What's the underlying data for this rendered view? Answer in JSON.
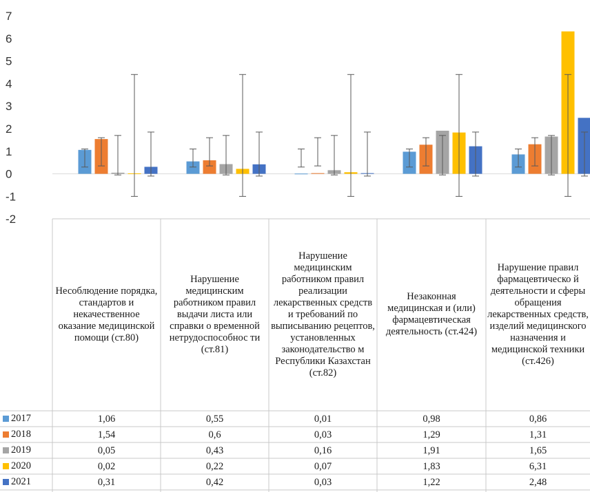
{
  "chart_data": {
    "type": "bar",
    "ylim": [
      -2,
      7
    ],
    "yticks": [
      -2,
      -1,
      0,
      1,
      2,
      3,
      4,
      5,
      6,
      7
    ],
    "categories": [
      "Несоблюдение порядка, стандартов и некачественное оказание медицинской помощи (ст.80)",
      "Нарушение медицинским работником правил выдачи листа или справки о временной нетрудоспособнос ти (ст.81)",
      "Нарушение медицинским работником правил реализации лекарственных средств и требований по выписыванию рецептов, установленных законодательство м Республики Казахстан (ст.82)",
      "Незаконная медицинская и (или) фармацевтическая деятельность (ст.424)",
      "Нарушение правил фармацевтическо й деятельности и сферы обращения лекарственных средств, изделий медицинского назначения и медицинской техники (ст.426)"
    ],
    "series": [
      {
        "name": "2017",
        "color": "#5B9BD5",
        "values": [
          1.06,
          0.55,
          0.01,
          0.98,
          0.86
        ],
        "labels": [
          "1,06",
          "0,55",
          "0,01",
          "0,98",
          "0,86"
        ],
        "error_low": [
          0.3,
          0.3,
          0.3,
          0.3,
          0.3
        ],
        "error_high": [
          1.1,
          1.1,
          1.1,
          1.1,
          1.1
        ]
      },
      {
        "name": "2018",
        "color": "#ED7D31",
        "values": [
          1.54,
          0.6,
          0.03,
          1.29,
          1.31
        ],
        "labels": [
          "1,54",
          "0,6",
          "0,03",
          "1,29",
          "1,31"
        ],
        "error_low": [
          0.35,
          0.35,
          0.35,
          0.35,
          0.35
        ],
        "error_high": [
          1.6,
          1.6,
          1.6,
          1.6,
          1.6
        ]
      },
      {
        "name": "2019",
        "color": "#A5A5A5",
        "values": [
          0.05,
          0.43,
          0.16,
          1.91,
          1.65
        ],
        "labels": [
          "0,05",
          "0,43",
          "0,16",
          "1,91",
          "1,65"
        ],
        "error_low": [
          -0.05,
          -0.05,
          -0.05,
          -0.05,
          -0.05
        ],
        "error_high": [
          1.7,
          1.7,
          1.7,
          1.7,
          1.7
        ]
      },
      {
        "name": "2020",
        "color": "#FFC000",
        "values": [
          0.02,
          0.22,
          0.07,
          1.83,
          6.31
        ],
        "labels": [
          "0,02",
          "0,22",
          "0,07",
          "1,83",
          "6,31"
        ],
        "error_low": [
          -1,
          -1,
          -1,
          -1,
          -1
        ],
        "error_high": [
          4.4,
          4.4,
          4.4,
          4.4,
          4.4
        ]
      },
      {
        "name": "2021",
        "color": "#4472C4",
        "values": [
          0.31,
          0.42,
          0.03,
          1.22,
          2.48
        ],
        "labels": [
          "0,31",
          "0,42",
          "0,03",
          "1,22",
          "2,48"
        ],
        "error_low": [
          -0.1,
          -0.1,
          -0.1,
          -0.1,
          -0.1
        ],
        "error_high": [
          1.85,
          1.85,
          1.85,
          1.85,
          1.85
        ]
      }
    ],
    "grid": false,
    "legend": "data-table-left"
  }
}
